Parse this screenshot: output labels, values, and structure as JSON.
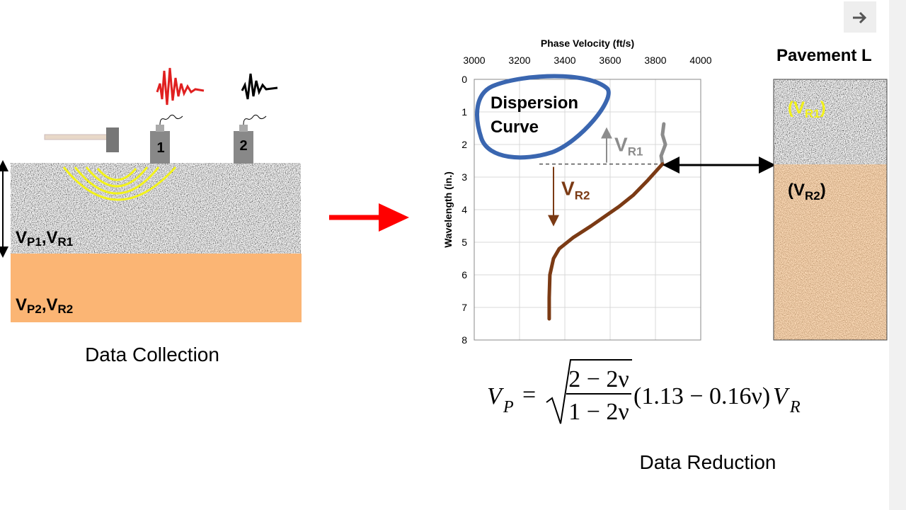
{
  "left_panel": {
    "geophone_1": "1",
    "geophone_2": "2",
    "layer_1_label": [
      "V",
      "P1",
      ",",
      "V",
      "R1"
    ],
    "layer_2_label": [
      "V",
      "P2",
      ",",
      "V",
      "R2"
    ],
    "caption": "Data Collection"
  },
  "chart_data": {
    "type": "line",
    "x_label": "Phase Velocity (ft/s)",
    "y_label": "Wavelength (in.)",
    "xlim": [
      3000,
      4000
    ],
    "xticks": [
      3000,
      3200,
      3400,
      3600,
      3800,
      4000
    ],
    "ylim": [
      0,
      8
    ],
    "yticks": [
      0,
      1,
      2,
      3,
      4,
      5,
      6,
      7,
      8
    ],
    "y_inverted": true,
    "x_axis_position": "top",
    "grid": true,
    "series": [
      {
        "color": "#8c8c8c",
        "x": [
          3837,
          3831,
          3844,
          3825,
          3831
        ],
        "values": [
          1.37,
          1.7,
          2.0,
          2.35,
          2.6
        ]
      },
      {
        "color": "#7b3a14",
        "x": [
          3831,
          3766,
          3703,
          3640,
          3578,
          3516,
          3438,
          3375,
          3350,
          3334,
          3331,
          3331
        ],
        "values": [
          2.6,
          3.1,
          3.55,
          3.9,
          4.2,
          4.5,
          4.85,
          5.2,
          5.5,
          6.0,
          6.7,
          7.35
        ]
      }
    ],
    "boundary_wavelength": 2.6,
    "annotations": {
      "dispersion": [
        "Dispersion",
        "Curve"
      ],
      "vr1": [
        "V",
        "R1"
      ],
      "vr2": [
        "V",
        "R2"
      ]
    }
  },
  "right_panel": {
    "title": "Pavement L",
    "layer_1_label": [
      "(V",
      "R1",
      ")"
    ],
    "layer_2_label": [
      "(V",
      "R2",
      ")"
    ]
  },
  "formula": {
    "lhs": "V",
    "lhs_sub": "P",
    "equals": "=",
    "numerator": "2 − 2ν",
    "denominator": "1 − 2ν",
    "factor": "(1.13 − 0.16ν)",
    "rhs": "V",
    "rhs_sub": "R"
  },
  "caption_right": "Data Reduction"
}
